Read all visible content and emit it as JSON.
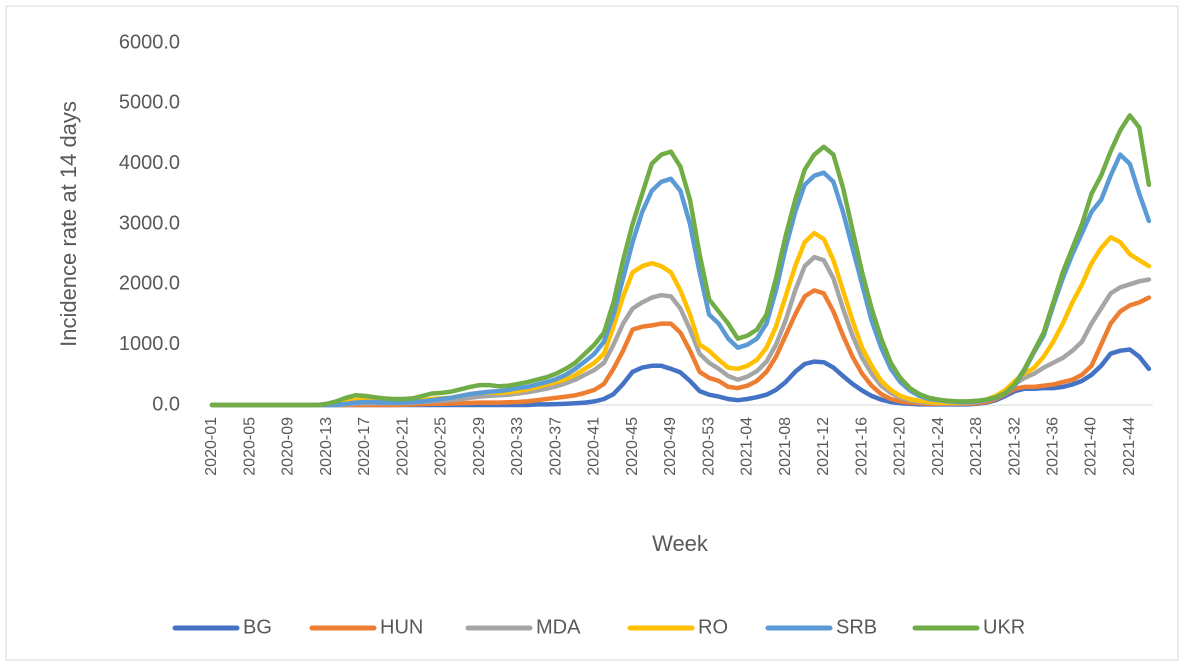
{
  "chart_data": {
    "type": "line",
    "y_label": "Incidence rate at 14 days",
    "x_label": "Week",
    "categories": [
      "2020-01",
      null,
      null,
      null,
      "2020-05",
      null,
      null,
      null,
      "2020-09",
      null,
      null,
      null,
      "2020-13",
      null,
      null,
      null,
      "2020-17",
      null,
      null,
      null,
      "2020-21",
      null,
      null,
      null,
      "2020-25",
      null,
      null,
      null,
      "2020-29",
      null,
      null,
      null,
      "2020-33",
      null,
      null,
      null,
      "2020-37",
      null,
      null,
      null,
      "2020-41",
      null,
      null,
      null,
      "2020-45",
      null,
      null,
      null,
      "2020-49",
      null,
      null,
      null,
      "2020-53",
      null,
      null,
      null,
      "2021-04",
      null,
      null,
      null,
      "2021-08",
      null,
      null,
      null,
      "2021-12",
      null,
      null,
      null,
      "2021-16",
      null,
      null,
      null,
      "2021-20",
      null,
      null,
      null,
      "2021-24",
      null,
      null,
      null,
      "2021-28",
      null,
      null,
      null,
      "2021-32",
      null,
      null,
      null,
      "2021-36",
      null,
      null,
      null,
      "2021-40",
      null,
      null,
      null,
      "2021-44",
      null,
      null
    ],
    "ylim": [
      0,
      6000
    ],
    "yticks": [
      {
        "value": 0,
        "label": "0.0"
      },
      {
        "value": 1000,
        "label": "1000.0"
      },
      {
        "value": 2000,
        "label": "2000.0"
      },
      {
        "value": 3000,
        "label": "3000.0"
      },
      {
        "value": 4000,
        "label": "4000.0"
      },
      {
        "value": 5000,
        "label": "5000.0"
      },
      {
        "value": 6000,
        "label": "6000.0"
      }
    ],
    "grid": false,
    "legend": "bottom",
    "series": [
      {
        "name": "BG",
        "color": "#4472c4",
        "values": [
          0,
          0,
          0,
          0,
          0,
          0,
          0,
          0,
          0,
          0,
          0,
          0,
          0,
          0,
          0,
          0,
          0,
          0,
          0,
          0,
          0,
          0,
          0,
          0,
          0,
          0,
          0,
          0,
          0,
          0,
          0,
          0,
          0,
          0,
          10,
          10,
          15,
          20,
          30,
          40,
          60,
          100,
          180,
          350,
          550,
          620,
          650,
          650,
          600,
          540,
          400,
          230,
          170,
          140,
          100,
          80,
          100,
          130,
          170,
          250,
          380,
          550,
          680,
          720,
          710,
          620,
          480,
          350,
          240,
          150,
          90,
          50,
          30,
          20,
          10,
          10,
          10,
          10,
          10,
          10,
          20,
          40,
          80,
          150,
          230,
          270,
          270,
          280,
          280,
          300,
          340,
          400,
          500,
          650,
          850,
          900,
          920,
          800,
          600
        ]
      },
      {
        "name": "HUN",
        "color": "#ed7d31",
        "values": [
          0,
          0,
          0,
          0,
          0,
          0,
          0,
          0,
          0,
          0,
          0,
          0,
          0,
          0,
          0,
          0,
          0,
          0,
          0,
          0,
          5,
          10,
          15,
          20,
          20,
          25,
          30,
          35,
          40,
          40,
          40,
          45,
          50,
          60,
          80,
          100,
          120,
          140,
          160,
          200,
          250,
          350,
          600,
          900,
          1250,
          1300,
          1320,
          1350,
          1350,
          1200,
          900,
          550,
          450,
          400,
          300,
          280,
          320,
          400,
          550,
          800,
          1150,
          1500,
          1800,
          1900,
          1850,
          1550,
          1150,
          800,
          520,
          320,
          180,
          100,
          60,
          40,
          30,
          20,
          20,
          20,
          20,
          20,
          30,
          50,
          100,
          180,
          270,
          300,
          300,
          320,
          340,
          380,
          420,
          500,
          650,
          1000,
          1350,
          1550,
          1650,
          1700,
          1780
        ]
      },
      {
        "name": "MDA",
        "color": "#a5a5a5",
        "values": [
          0,
          0,
          0,
          0,
          0,
          0,
          0,
          0,
          0,
          0,
          0,
          0,
          0,
          0,
          10,
          20,
          30,
          30,
          30,
          30,
          30,
          40,
          50,
          60,
          70,
          80,
          100,
          120,
          140,
          150,
          160,
          170,
          190,
          210,
          240,
          270,
          310,
          360,
          420,
          500,
          580,
          700,
          1000,
          1350,
          1600,
          1700,
          1780,
          1820,
          1800,
          1600,
          1250,
          850,
          700,
          600,
          480,
          420,
          470,
          560,
          720,
          1000,
          1400,
          1900,
          2300,
          2450,
          2400,
          2100,
          1600,
          1150,
          780,
          520,
          320,
          200,
          120,
          80,
          50,
          40,
          30,
          30,
          30,
          40,
          50,
          80,
          140,
          230,
          350,
          450,
          520,
          620,
          700,
          780,
          900,
          1050,
          1350,
          1600,
          1850,
          1950,
          2000,
          2050,
          2080
        ]
      },
      {
        "name": "RO",
        "color": "#ffc000",
        "values": [
          0,
          0,
          0,
          0,
          0,
          0,
          0,
          0,
          0,
          0,
          0,
          0,
          0,
          20,
          50,
          80,
          100,
          90,
          80,
          70,
          60,
          60,
          80,
          100,
          110,
          120,
          150,
          180,
          200,
          210,
          200,
          210,
          230,
          260,
          300,
          340,
          380,
          430,
          500,
          600,
          700,
          850,
          1300,
          1800,
          2200,
          2300,
          2350,
          2300,
          2200,
          1900,
          1500,
          1000,
          900,
          750,
          620,
          600,
          650,
          750,
          950,
          1300,
          1800,
          2300,
          2700,
          2850,
          2750,
          2400,
          1900,
          1400,
          950,
          650,
          400,
          250,
          150,
          100,
          70,
          50,
          40,
          40,
          40,
          50,
          60,
          90,
          150,
          250,
          400,
          520,
          620,
          800,
          1050,
          1350,
          1700,
          2000,
          2350,
          2600,
          2780,
          2700,
          2500,
          2400,
          2300
        ]
      },
      {
        "name": "SRB",
        "color": "#5b9bd5",
        "values": [
          0,
          0,
          0,
          0,
          0,
          0,
          0,
          0,
          0,
          0,
          0,
          0,
          0,
          0,
          20,
          40,
          50,
          50,
          40,
          40,
          40,
          50,
          60,
          80,
          100,
          120,
          150,
          180,
          200,
          220,
          230,
          250,
          280,
          300,
          340,
          380,
          430,
          500,
          600,
          720,
          850,
          1050,
          1500,
          2100,
          2700,
          3200,
          3550,
          3700,
          3750,
          3550,
          3000,
          2200,
          1500,
          1350,
          1100,
          950,
          1000,
          1100,
          1350,
          1900,
          2600,
          3200,
          3650,
          3800,
          3850,
          3700,
          3200,
          2600,
          2000,
          1400,
          950,
          600,
          380,
          240,
          150,
          100,
          80,
          60,
          50,
          50,
          60,
          80,
          120,
          190,
          330,
          580,
          880,
          1150,
          1650,
          2100,
          2500,
          2850,
          3200,
          3400,
          3800,
          4150,
          4000,
          3500,
          3050
        ]
      },
      {
        "name": "UKR",
        "color": "#70ad47",
        "values": [
          0,
          0,
          0,
          0,
          0,
          0,
          0,
          0,
          0,
          0,
          0,
          0,
          20,
          60,
          120,
          160,
          150,
          130,
          110,
          100,
          100,
          110,
          150,
          190,
          200,
          220,
          260,
          300,
          330,
          330,
          310,
          320,
          350,
          380,
          420,
          460,
          520,
          600,
          700,
          850,
          1000,
          1200,
          1700,
          2400,
          3000,
          3500,
          4000,
          4150,
          4200,
          3950,
          3400,
          2500,
          1750,
          1550,
          1350,
          1100,
          1150,
          1250,
          1500,
          2100,
          2800,
          3400,
          3900,
          4150,
          4280,
          4150,
          3600,
          2900,
          2200,
          1600,
          1100,
          700,
          450,
          280,
          180,
          120,
          90,
          70,
          60,
          60,
          70,
          90,
          130,
          200,
          350,
          600,
          900,
          1200,
          1700,
          2200,
          2600,
          3000,
          3500,
          3800,
          4200,
          4550,
          4800,
          4600,
          3650
        ]
      }
    ]
  }
}
